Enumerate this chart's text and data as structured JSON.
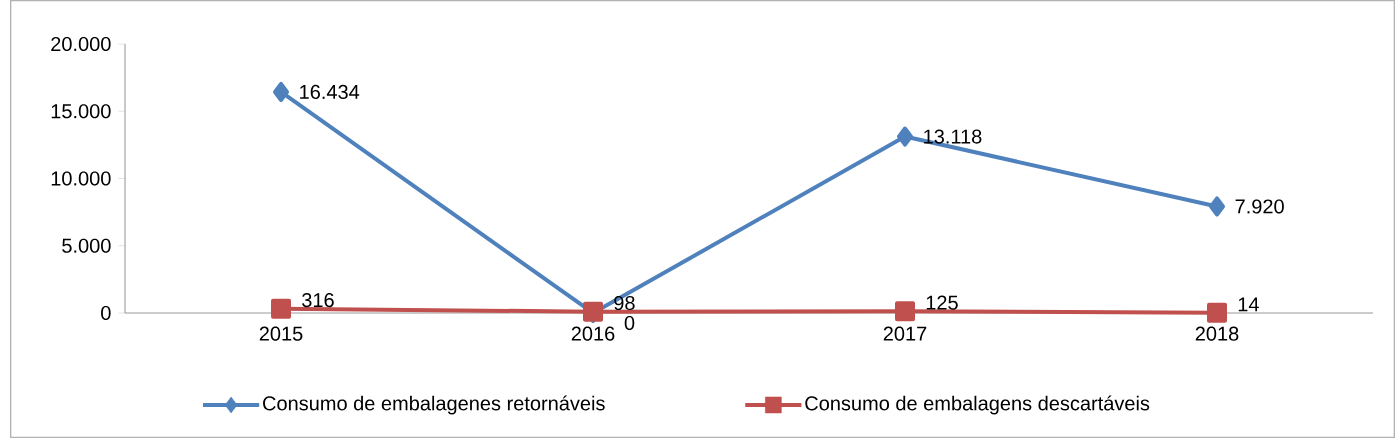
{
  "chart_data": {
    "type": "line",
    "categories": [
      "2015",
      "2016",
      "2017",
      "2018"
    ],
    "series": [
      {
        "name": "Consumo de embalagenes retornáveis",
        "color": "#4f81bd",
        "marker": "diamond",
        "values": [
          16434,
          0,
          13118,
          7920
        ],
        "value_labels": [
          "16.434",
          "0",
          "13.118",
          "7.920"
        ]
      },
      {
        "name": "Consumo de embalagens descartáveis",
        "color": "#c0504d",
        "marker": "square",
        "values": [
          316,
          98,
          125,
          14
        ],
        "value_labels": [
          "316",
          "98",
          "125",
          "14"
        ]
      }
    ],
    "ylim": [
      0,
      20000
    ],
    "yticks": [
      0,
      {
        "value": 5000,
        "label": "5.000"
      },
      {
        "value": 10000,
        "label": "10.000"
      },
      {
        "value": 15000,
        "label": "15.000"
      },
      {
        "value": 20000,
        "label": "20.000"
      }
    ],
    "legend": "bottom",
    "line_style": "solid"
  }
}
